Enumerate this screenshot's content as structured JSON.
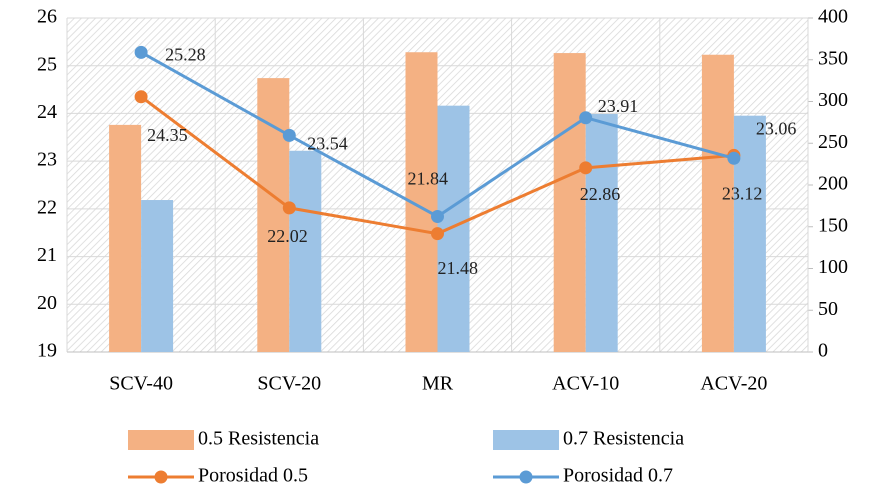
{
  "chart_data": {
    "type": "bar-line",
    "categories": [
      "SCV-40",
      "SCV-20",
      "MR",
      "ACV-10",
      "ACV-20"
    ],
    "series": [
      {
        "name": "0.5 Resistencia",
        "type": "bar",
        "axis": "y2",
        "color": "#f4b183",
        "values": [
          272,
          328,
          359,
          358,
          356
        ]
      },
      {
        "name": "0.7 Resistencia",
        "type": "bar",
        "axis": "y2",
        "color": "#9dc3e6",
        "values": [
          182,
          241,
          295,
          285,
          283
        ]
      },
      {
        "name": "Porosidad 0.5",
        "type": "line",
        "axis": "y",
        "color": "#ed7d31",
        "values": [
          24.35,
          22.02,
          21.48,
          22.86,
          23.12
        ]
      },
      {
        "name": "Porosidad 0.7",
        "type": "line",
        "axis": "y",
        "color": "#5b9bd5",
        "values": [
          25.28,
          23.54,
          21.84,
          23.91,
          23.06
        ]
      }
    ],
    "ylim": [
      19,
      26
    ],
    "yticks": [
      19,
      20,
      21,
      22,
      23,
      24,
      25,
      26
    ],
    "y2lim": [
      0,
      400
    ],
    "y2ticks": [
      0,
      50,
      100,
      150,
      200,
      250,
      300,
      350,
      400
    ],
    "grid": true,
    "legend": "bottom"
  }
}
